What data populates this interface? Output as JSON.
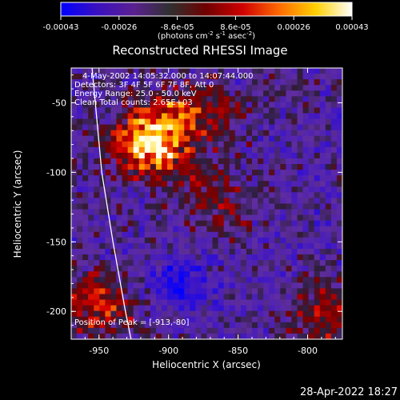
{
  "colorbar": {
    "tick_labels": [
      "-0.00043",
      "-0.00026",
      "-8.6e-05",
      "8.6e-05",
      "0.00026",
      "0.00043"
    ],
    "min": -0.00043,
    "max": 0.00043,
    "colors": [
      "#0000ff",
      "#3a10c0",
      "#5a2090",
      "#303030",
      "#700000",
      "#d00000",
      "#ff6a00",
      "#ffd000",
      "#ffffff"
    ]
  },
  "chart_data": {
    "type": "heatmap",
    "title": "Reconstructed RHESSI Image",
    "xlabel": "Heliocentric X (arcsec)",
    "ylabel": "Heliocentric Y (arcsec)",
    "xlim": [
      -970,
      -775
    ],
    "ylim": [
      -220,
      -25
    ],
    "xticks": [
      -950,
      -900,
      -850,
      -800
    ],
    "yticks": [
      -50,
      -100,
      -150,
      -200
    ],
    "units_label": "(photons cm",
    "units_sup1": "-2",
    "units_mid": " s",
    "units_sup2": "-1",
    "units_mid2": " asec",
    "units_sup3": "-2",
    "units_end": ")",
    "annotations": [
      "4-May-2002 14:05:32.000 to 14:07:44.000",
      "Detectors: 3F 4F 5F 6F 7F 8F, Att 0",
      "Energy Range: 25.0 - 50.0 keV",
      "Clean     Total counts: 2.65E+03"
    ],
    "peak_label": "Position of Peak = [-913,-80]",
    "peak": [
      -913,
      -80
    ],
    "limb_curve": [
      [
        -955,
        -25
      ],
      [
        -948,
        -100
      ],
      [
        -940,
        -150
      ],
      [
        -931,
        -200
      ],
      [
        -927,
        -220
      ]
    ]
  },
  "footer": {
    "timestamp": "28-Apr-2022 18:27"
  }
}
